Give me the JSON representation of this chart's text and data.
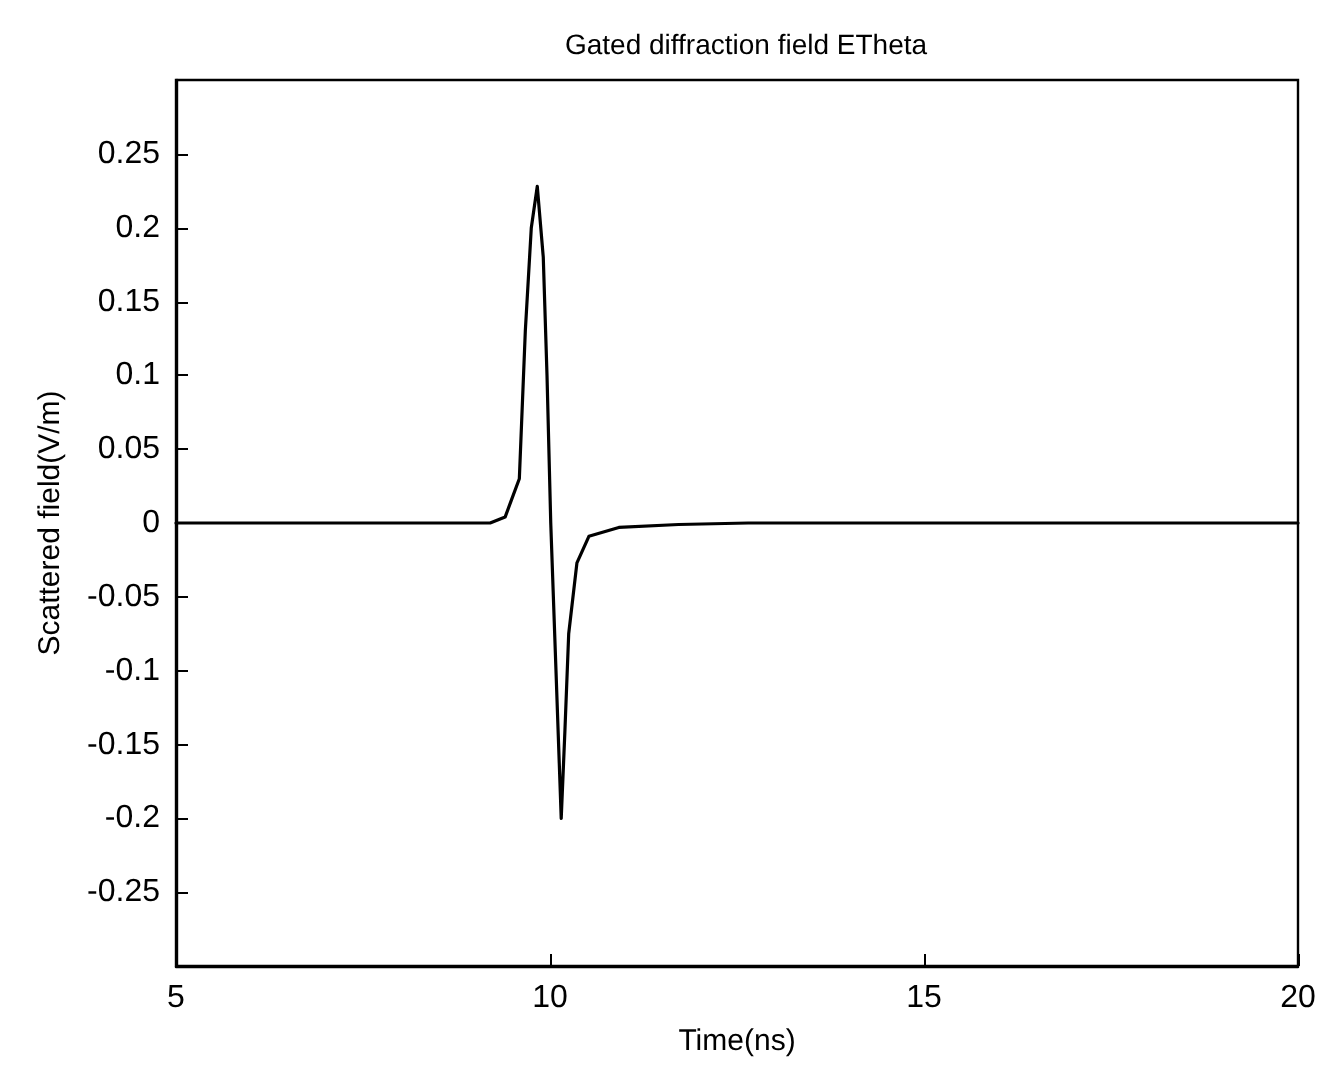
{
  "chart_data": {
    "type": "line",
    "title": "Gated diffraction field ETheta",
    "xlabel": "Time(ns)",
    "ylabel": "Scattered field(V/m)",
    "series": [
      {
        "color": "#000000",
        "x": [
          5,
          9.2,
          9.4,
          9.48,
          9.59,
          9.67,
          9.75,
          9.83,
          9.91,
          9.96,
          10.01,
          10.08,
          10.15,
          10.2,
          10.25,
          10.36,
          10.52,
          10.92,
          11.72,
          12.65,
          20
        ],
        "values": [
          0,
          0,
          0.004,
          0.015,
          0.03,
          0.13,
          0.2,
          0.228,
          0.18,
          0.1,
          0,
          -0.1,
          -0.2,
          -0.14,
          -0.075,
          -0.027,
          -0.009,
          -0.003,
          -0.001,
          0,
          0
        ]
      }
    ],
    "xlim": [
      5,
      20
    ],
    "xticks": [
      5,
      10,
      15,
      20
    ],
    "ylim": [
      -0.3,
      0.3
    ],
    "yticks": [
      -0.25,
      -0.2,
      -0.15,
      -0.1,
      -0.05,
      0,
      0.05,
      0.1,
      0.15,
      0.2,
      0.25
    ],
    "grid": false,
    "marker": "none",
    "line_style": "solid"
  }
}
